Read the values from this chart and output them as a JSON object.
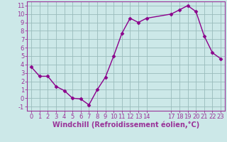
{
  "x": [
    0,
    1,
    2,
    3,
    4,
    5,
    6,
    7,
    8,
    9,
    10,
    11,
    12,
    13,
    14,
    17,
    18,
    19,
    20,
    21,
    22,
    23
  ],
  "y": [
    3.7,
    2.6,
    2.6,
    1.4,
    0.9,
    0.0,
    -0.1,
    -0.8,
    1.0,
    2.5,
    5.0,
    7.7,
    9.5,
    9.0,
    9.5,
    10.0,
    10.5,
    11.0,
    10.3,
    7.4,
    5.4,
    4.7
  ],
  "line_color": "#8b008b",
  "marker": "D",
  "marker_size": 2.5,
  "bg_color": "#cce8e8",
  "grid_color": "#99bbbb",
  "xlabel": "Windchill (Refroidissement éolien,°C)",
  "ylim": [
    -1.5,
    11.5
  ],
  "xlim": [
    -0.5,
    23.5
  ],
  "yticks": [
    -1,
    0,
    1,
    2,
    3,
    4,
    5,
    6,
    7,
    8,
    9,
    10,
    11
  ],
  "xticks": [
    0,
    1,
    2,
    3,
    4,
    5,
    6,
    7,
    8,
    9,
    10,
    11,
    12,
    13,
    14,
    17,
    18,
    19,
    20,
    21,
    22,
    23
  ],
  "axis_color": "#993399",
  "tick_color": "#993399",
  "label_color": "#993399",
  "fontsize_xlabel": 7,
  "fontsize_ticks": 6
}
